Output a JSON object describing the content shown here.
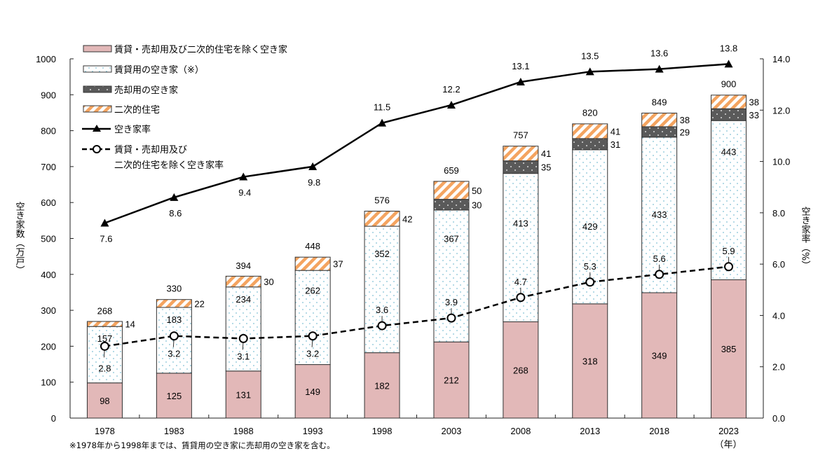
{
  "chart_data": {
    "type": "bar",
    "subtype": "stacked-bar-with-lines",
    "categories": [
      "1978",
      "1983",
      "1988",
      "1993",
      "1998",
      "2003",
      "2008",
      "2013",
      "2018",
      "2023"
    ],
    "series": [
      {
        "name": "賃貸・売却用及び二次的住宅を除く空き家",
        "kind": "bar",
        "axis": "left",
        "color": "#e2b8b8",
        "values": [
          98,
          125,
          131,
          149,
          182,
          212,
          268,
          318,
          349,
          385
        ]
      },
      {
        "name": "賃貸用の空き家（※）",
        "kind": "bar",
        "axis": "left",
        "color": "#ffffff",
        "dot_color": "#7fbfd4",
        "values": [
          157,
          183,
          234,
          262,
          352,
          367,
          413,
          429,
          433,
          443
        ]
      },
      {
        "name": "売却用の空き家",
        "kind": "bar",
        "axis": "left",
        "color": "#5a5a5a",
        "dot_color": "#d8d8d8",
        "values": [
          null,
          null,
          null,
          null,
          null,
          30,
          35,
          31,
          29,
          33
        ]
      },
      {
        "name": "二次的住宅",
        "kind": "bar",
        "axis": "left",
        "color": "#f4a460",
        "stripe_bg": "#ffffff",
        "values": [
          14,
          22,
          30,
          37,
          42,
          50,
          41,
          41,
          38,
          38
        ]
      },
      {
        "name": "空き家率",
        "kind": "line",
        "axis": "right",
        "marker": "triangle",
        "style": "solid",
        "color": "#000000",
        "values": [
          7.6,
          8.6,
          9.4,
          9.8,
          11.5,
          12.2,
          13.1,
          13.5,
          13.6,
          13.8
        ],
        "labels": [
          "7.6",
          "8.6",
          "9.4",
          "9.8",
          "11.5",
          "12.2",
          "13.1",
          "13.5",
          "13.6",
          "13.8"
        ]
      },
      {
        "name": "賃貸・売却用及び二次的住宅を除く空き家率",
        "kind": "line",
        "axis": "right",
        "marker": "circle",
        "style": "dashed",
        "color": "#000000",
        "values": [
          2.8,
          3.2,
          3.1,
          3.2,
          3.6,
          3.9,
          4.7,
          5.3,
          5.6,
          5.9
        ],
        "labels": [
          "2.8",
          "3.2",
          "3.1",
          "3.2",
          "3.6",
          "3.9",
          "4.7",
          "5.3",
          "5.6",
          "5.9"
        ]
      }
    ],
    "totals": [
      268,
      330,
      394,
      448,
      576,
      659,
      757,
      820,
      849,
      900
    ],
    "legend": [
      {
        "label": "賃貸・売却用及び二次的住宅を除く空き家",
        "kind": "bar-pink"
      },
      {
        "label": "賃貸用の空き家（※）",
        "kind": "bar-dotted"
      },
      {
        "label": "売却用の空き家",
        "kind": "bar-dark"
      },
      {
        "label": "二次的住宅",
        "kind": "bar-striped"
      },
      {
        "label": "空き家率",
        "kind": "line-triangle"
      },
      {
        "label": "賃貸・売却用及び",
        "label2": "二次的住宅を除く空き家率",
        "kind": "line-circle-dashed"
      }
    ],
    "legend_position": "top-left",
    "y_left": {
      "label": "空き家数（万戸）",
      "min": 0,
      "max": 1000,
      "ticks": [
        0,
        100,
        200,
        300,
        400,
        500,
        600,
        700,
        800,
        900,
        1000
      ],
      "tick_labels": [
        "0",
        "100",
        "200",
        "300",
        "400",
        "500",
        "600",
        "700",
        "800",
        "900",
        "1000"
      ]
    },
    "y_right": {
      "label": "空き家率（%）",
      "min": 0,
      "max": 14,
      "ticks": [
        0,
        2,
        4,
        6,
        8,
        10,
        12,
        14
      ],
      "tick_labels": [
        "0.0",
        "2.0",
        "4.0",
        "6.0",
        "8.0",
        "10.0",
        "12.0",
        "14.0"
      ]
    },
    "xlabel_unit": "（年）",
    "grid": false,
    "note": "※1978年から1998年までは、賃貸用の空き家に売却用の空き家を含む。"
  }
}
